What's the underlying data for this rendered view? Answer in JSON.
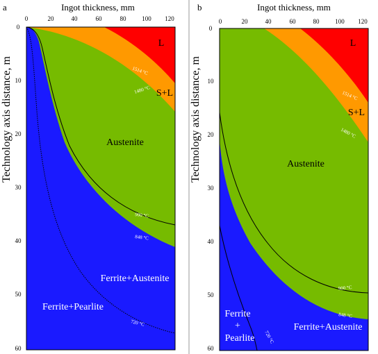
{
  "y_axis_label": "Technology axis distance, m",
  "panels": [
    {
      "letter": "a",
      "x_axis_label": "Ingot thickness, mm",
      "x_ticks": [
        "0",
        "20",
        "40",
        "60",
        "80",
        "100",
        "120"
      ],
      "y_ticks": [
        "0",
        "10",
        "20",
        "30",
        "40",
        "50",
        "60"
      ],
      "regions": {
        "liquid": "L",
        "mushy": "S+L",
        "austenite": "Austenite",
        "ferrite_austenite": "Ferrite+Austenite",
        "ferrite_pearlite": "Ferrite+Pearlite"
      },
      "isotherms": {
        "t1514": "1514 °C",
        "t1480": "1480 °C",
        "t900": "900 °C",
        "t848": "848 °C",
        "t720": "720 °C"
      }
    },
    {
      "letter": "b",
      "x_axis_label": "Ingot thickness, mm",
      "x_ticks": [
        "0",
        "20",
        "40",
        "60",
        "80",
        "100",
        "120"
      ],
      "y_ticks": [
        "0",
        "10",
        "20",
        "30",
        "40",
        "50",
        "60"
      ],
      "regions": {
        "liquid": "L",
        "mushy": "S+L",
        "austenite": "Austenite",
        "ferrite_austenite": "Ferrite+Austenite",
        "ferrite_pearlite_1": "Ferrite",
        "ferrite_pearlite_2": "+",
        "ferrite_pearlite_3": "Pearlite"
      },
      "isotherms": {
        "t1514": "1514 °C",
        "t1480": "1480 °C",
        "t900": "900 °C",
        "t848": "848 °C",
        "t720": "720 °C"
      }
    }
  ],
  "colors": {
    "liquid": "#ff0000",
    "mushy": "#ff9900",
    "austenite": "#76bb00",
    "ferrite": "#1a1aff",
    "frame": "#000000"
  }
}
